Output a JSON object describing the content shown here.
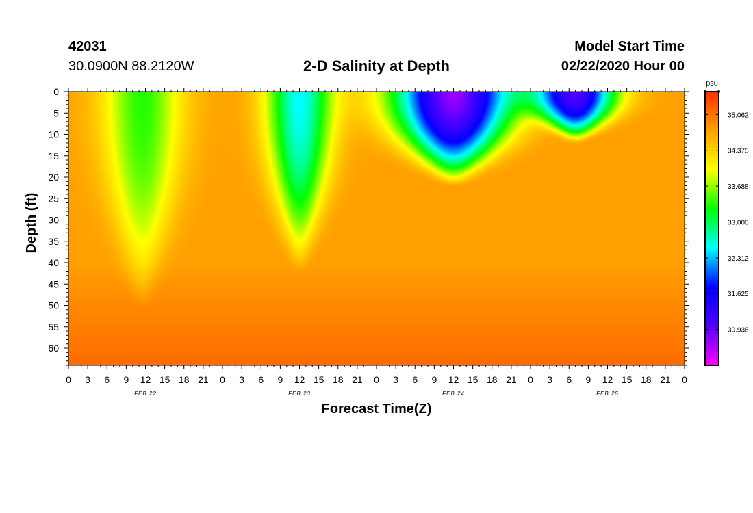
{
  "header": {
    "station_id": "42031",
    "location": "30.0900N 88.2120W",
    "title": "2-D Salinity at Depth",
    "model_start_label": "Model Start Time",
    "model_start_value": "02/22/2020 Hour 00"
  },
  "chart_data": {
    "type": "heatmap",
    "title": "2-D Salinity at Depth",
    "xlabel": "Forecast Time(Z)",
    "ylabel": "Depth (ft)",
    "x_tick_labels": [
      "0",
      "3",
      "6",
      "9",
      "12",
      "15",
      "18",
      "21",
      "0",
      "3",
      "6",
      "9",
      "12",
      "15",
      "18",
      "21",
      "0",
      "3",
      "6",
      "9",
      "12",
      "15",
      "18",
      "21",
      "0",
      "3",
      "6",
      "9",
      "12",
      "15",
      "18",
      "21",
      "0"
    ],
    "x_date_labels": [
      "FEB 22",
      "FEB 23",
      "FEB 24",
      "FEB 25"
    ],
    "xlim_hours": [
      0,
      96
    ],
    "y_ticks": [
      0,
      5,
      10,
      15,
      20,
      25,
      30,
      35,
      40,
      45,
      50,
      55,
      60
    ],
    "ylim": [
      0,
      64
    ],
    "y_inverted": true,
    "colorbar": {
      "unit": "psu",
      "ticks": [
        "35.062",
        "34.375",
        "33.688",
        "33.000",
        "32.312",
        "31.625",
        "30.938"
      ],
      "tick_values": [
        35.062,
        34.375,
        33.688,
        33.0,
        32.312,
        31.625,
        30.938
      ],
      "range": [
        30.25,
        35.5
      ],
      "colors": [
        "#ff00ff",
        "#5000ff",
        "#0000ff",
        "#00ffff",
        "#00ff00",
        "#ffff00",
        "#ffa000",
        "#ff3000"
      ]
    },
    "field": {
      "background": 34.75,
      "features": [
        {
          "center_hour": 11.5,
          "top_depth": 0,
          "bottom_depth": 50,
          "half_width_hours": 6,
          "min_value": 33.35
        },
        {
          "center_hour": 12.0,
          "top_depth": 0,
          "bottom_depth": 42,
          "half_width_hours": 5,
          "min_value": 32.5
        },
        {
          "center_hour": 12.0,
          "top_depth": 0,
          "bottom_depth": 22,
          "half_width_hours": 9,
          "min_value": 30.7
        },
        {
          "center_hour": 7.0,
          "top_depth": 0,
          "bottom_depth": 12,
          "half_width_hours": 6,
          "min_value": 31.1
        }
      ]
    }
  }
}
